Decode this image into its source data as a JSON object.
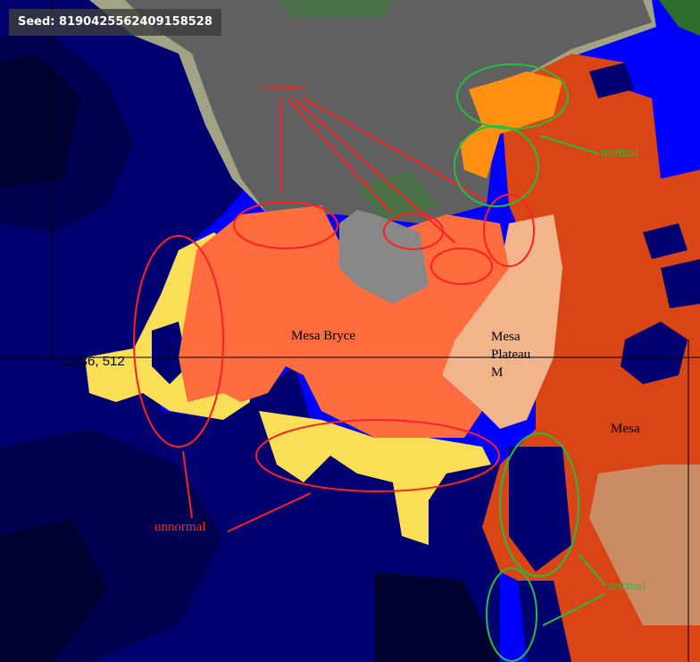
{
  "seed_label": "Seed: 8190425562409158528",
  "cursor_coordinate": "-1536, 512",
  "biome_labels": {
    "mesa_bryce": "Mesa Bryce",
    "mesa_plateau_m": [
      "Mesa",
      "Plateau",
      "M"
    ],
    "mesa": "Mesa"
  },
  "annotations": {
    "unnormal_top": "unnormal",
    "unnormal_bottom": "unnormal",
    "normal_top": "normal",
    "normal_bottom": "normal"
  },
  "colors": {
    "deep_ocean": "#000050",
    "dark_deep": "#000030",
    "ocean": "#000070",
    "river": "#0000ff",
    "extreme_hills": "#606060",
    "gravel_hills": "#888888",
    "stone_beach": "#a2a284",
    "forest_hills": "#4a7048",
    "mesa": "#d94515",
    "mesa_bryce": "#ff6d3f",
    "mesa_plateau_m": "#f2b48a",
    "mesa_plateau": "#ca8c65",
    "beach": "#fade55",
    "orange_patch": "#ff9010",
    "annotation_red": "#ff2020",
    "annotation_green": "#20c040"
  }
}
